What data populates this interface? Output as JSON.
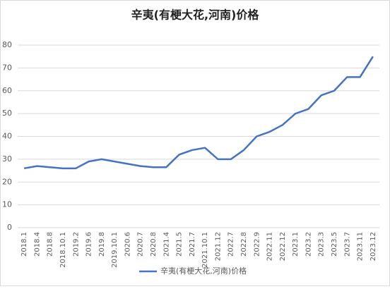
{
  "chart_data": {
    "type": "line",
    "title": "辛夷(有梗大花,河南)价格",
    "categories": [
      "2018.1",
      "2018.4",
      "2018.8",
      "2018.10.1",
      "2019.2",
      "2019.6",
      "2019.8",
      "2019.10.1",
      "2020.6",
      "2020.7",
      "2020.8",
      "2021.4",
      "2021.5",
      "2021.7",
      "2021.10.1",
      "2021.12",
      "2022.7",
      "2022.8",
      "2022.9",
      "2022.11",
      "2022.12",
      "2023.1",
      "2023.2",
      "2023.3",
      "2023.5",
      "2023.7",
      "2023.11",
      "2023.12"
    ],
    "series": [
      {
        "name": "辛夷(有梗大花,河南)价格",
        "color": "#4472c4",
        "values": [
          26,
          27,
          26.5,
          26,
          26,
          29,
          30,
          29,
          28,
          27,
          26.5,
          26.5,
          32,
          34,
          35,
          30,
          30,
          34,
          40,
          42,
          45,
          50,
          52,
          58,
          60,
          66,
          66,
          75
        ]
      }
    ],
    "ylim": [
      0,
      80
    ],
    "yticks": [
      0,
      10,
      20,
      30,
      40,
      50,
      60,
      70,
      80
    ],
    "grid": true,
    "legend": "bottom"
  }
}
